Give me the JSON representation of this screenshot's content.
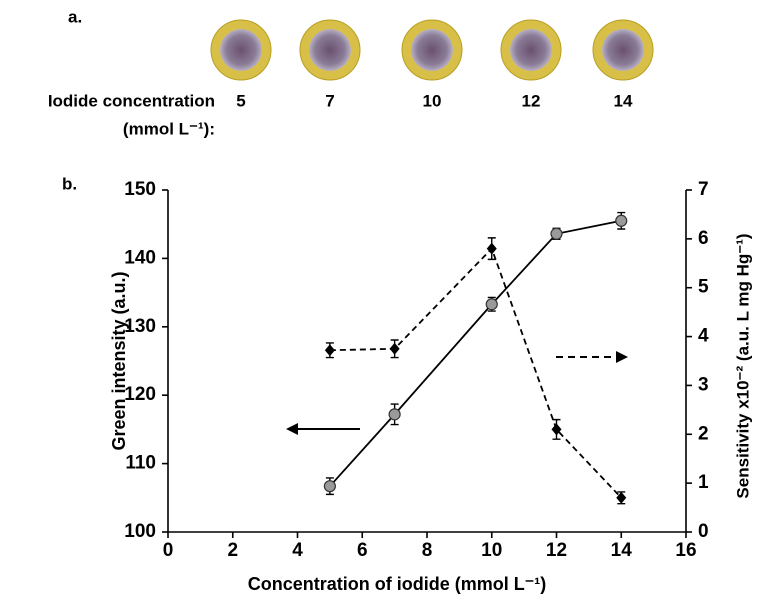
{
  "panel_a": {
    "label": "a.",
    "row_label": [
      "Iodide concentration",
      "(mmol L⁻¹):"
    ],
    "concentrations": [
      5,
      7,
      10,
      12,
      14
    ]
  },
  "panel_b": {
    "label": "b."
  },
  "chart_data": {
    "type": "line",
    "xlabel": "Concentration of iodide (mmol L⁻¹)",
    "ylabel": "Green intensity (a.u.)",
    "y2label": "Sensitivity x10⁻² (a.u. L mg Hg⁻¹)",
    "x": [
      5,
      7,
      10,
      12,
      14
    ],
    "series": [
      {
        "color": "#000000",
        "marker_color": "#9a9a9a",
        "marker": "circle",
        "style": "solid",
        "axis": "y",
        "values": [
          106.7,
          117.2,
          133.3,
          143.6,
          145.5
        ],
        "errors": [
          1.2,
          1.5,
          1.0,
          0.8,
          1.2
        ]
      },
      {
        "color": "#000000",
        "marker_color": "#000000",
        "marker": "diamond",
        "style": "dashed",
        "axis": "y2",
        "values": [
          3.72,
          3.75,
          5.8,
          2.1,
          0.7
        ],
        "errors": [
          0.15,
          0.18,
          0.22,
          0.2,
          0.12
        ]
      }
    ],
    "xlim": [
      0,
      16
    ],
    "xticks": [
      0,
      2,
      4,
      6,
      8,
      10,
      12,
      14,
      16
    ],
    "ylim": [
      100,
      150
    ],
    "yticks": [
      100,
      110,
      120,
      130,
      140,
      150
    ],
    "y2lim": [
      0,
      7
    ],
    "y2ticks": [
      0,
      1,
      2,
      3,
      4,
      5,
      6,
      7
    ],
    "grid": false
  }
}
